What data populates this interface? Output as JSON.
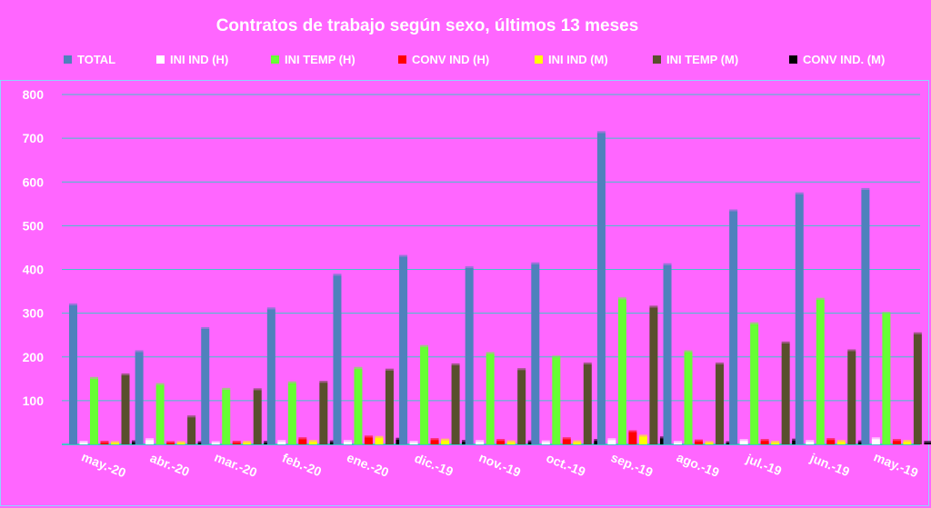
{
  "chart_data": {
    "type": "bar",
    "title": "Contratos de trabajo según sexo, últimos 13 meses",
    "categories": [
      "may.-20",
      "abr.-20",
      "mar.-20",
      "feb.-20",
      "ene.-20",
      "dic.-19",
      "nov.-19",
      "oct.-19",
      "sep.-19",
      "ago.-19",
      "jul.-19",
      "jun.-19",
      "may.-19"
    ],
    "series": [
      {
        "name": "TOTAL",
        "color": "#4f81bd",
        "values": [
          318,
          211,
          264,
          309,
          386,
          429,
          403,
          412,
          712,
          410,
          533,
          572,
          582
        ]
      },
      {
        "name": "INI IND (H)",
        "color": "#ffffff",
        "values": [
          4,
          10,
          3,
          6,
          6,
          4,
          6,
          5,
          10,
          4,
          8,
          6,
          12
        ]
      },
      {
        "name": "INI TEMP (H)",
        "color": "#66ff33",
        "values": [
          150,
          136,
          125,
          140,
          173,
          223,
          207,
          199,
          332,
          211,
          275,
          331,
          299
        ]
      },
      {
        "name": "CONV IND (H)",
        "color": "#ff0000",
        "values": [
          4,
          3,
          4,
          12,
          16,
          10,
          8,
          12,
          28,
          7,
          8,
          10,
          8
        ]
      },
      {
        "name": "INI IND (M)",
        "color": "#ffff00",
        "values": [
          3,
          2,
          4,
          6,
          15,
          9,
          5,
          5,
          18,
          3,
          4,
          6,
          6
        ]
      },
      {
        "name": "INI TEMP  (M)",
        "color": "#594f2d",
        "values": [
          158,
          62,
          124,
          141,
          169,
          181,
          170,
          183,
          313,
          183,
          231,
          213,
          252
        ]
      },
      {
        "name": "CONV IND.  (M)",
        "color": "#000000",
        "values": [
          5,
          2,
          4,
          5,
          11,
          6,
          5,
          8,
          14,
          3,
          9,
          5,
          4
        ]
      }
    ],
    "ylim": [
      0,
      800
    ],
    "yticks": [
      100,
      200,
      300,
      400,
      500,
      600,
      700,
      800
    ],
    "grid": true,
    "legend_position": "top"
  }
}
